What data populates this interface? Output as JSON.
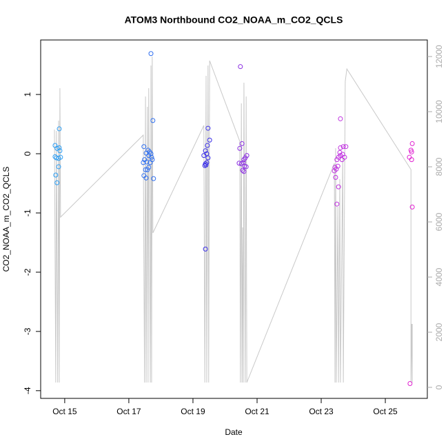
{
  "chart_data": {
    "type": "scatter",
    "title": "ATOM3 Northbound CO2_NOAA_m_CO2_QCLS",
    "x_label": "Date",
    "y_label": "CO2_NOAA_m_CO2_QCLS",
    "xlim": [
      14.25,
      26.31
    ],
    "ylim": [
      -4.13,
      1.92
    ],
    "y2lim": [
      -400,
      12600
    ],
    "xticks": [
      {
        "value": 15,
        "label": "Oct 15"
      },
      {
        "value": 17,
        "label": "Oct 17"
      },
      {
        "value": 19,
        "label": "Oct 19"
      },
      {
        "value": 21,
        "label": "Oct 21"
      },
      {
        "value": 23,
        "label": "Oct 23"
      },
      {
        "value": 25,
        "label": "Oct 25"
      }
    ],
    "yticks": [
      -4,
      -3,
      -2,
      -1,
      0,
      1
    ],
    "y2ticks": [
      0,
      2000,
      4000,
      6000,
      8000,
      10000,
      12000
    ],
    "series": [
      {
        "color": "#2a9df4",
        "x": [
          14.7,
          14.76,
          14.83,
          14.85,
          14.7,
          14.74,
          14.81,
          14.87,
          14.83,
          14.81,
          14.72,
          14.76
        ],
        "values": [
          0.14,
          0.09,
          0.1,
          0.05,
          -0.05,
          -0.07,
          -0.08,
          -0.06,
          0.42,
          -0.22,
          -0.36,
          -0.49
        ]
      },
      {
        "color": "#2f6ff0",
        "x": [
          17.69,
          17.75,
          17.77,
          17.47,
          17.54,
          17.6,
          17.65,
          17.69,
          17.62,
          17.71,
          17.49,
          17.56,
          17.45,
          17.73,
          17.58,
          17.52,
          17.62,
          17.47,
          17.54,
          17.67
        ],
        "values": [
          1.69,
          0.56,
          -0.42,
          0.12,
          0.01,
          0.06,
          0.03,
          0.0,
          -0.03,
          -0.06,
          -0.1,
          -0.14,
          -0.15,
          -0.1,
          -0.27,
          -0.27,
          -0.23,
          -0.37,
          -0.41,
          -0.15
        ]
      },
      {
        "color": "#3a2fe8",
        "x": [
          19.47,
          19.52,
          19.45,
          19.39,
          19.43,
          19.34,
          19.47,
          19.43,
          19.39,
          19.41,
          19.37,
          19.39
        ],
        "values": [
          0.43,
          0.23,
          0.14,
          0.05,
          0.0,
          -0.03,
          -0.07,
          -0.15,
          -0.17,
          -0.19,
          -0.2,
          -1.61
        ]
      },
      {
        "color": "#8a2be2",
        "x": [
          20.48,
          20.46,
          20.53,
          20.59,
          20.63,
          20.68,
          20.57,
          20.44,
          20.51,
          20.61,
          20.55,
          20.59,
          20.66
        ],
        "values": [
          1.47,
          0.09,
          0.17,
          -0.1,
          -0.07,
          -0.03,
          -0.15,
          -0.16,
          -0.17,
          -0.21,
          -0.28,
          -0.3,
          -0.22
        ]
      },
      {
        "color": "#c030e0",
        "x": [
          23.6,
          23.52,
          23.43,
          23.47,
          23.54,
          23.6,
          23.67,
          23.73,
          23.6,
          23.69,
          23.77,
          23.58,
          23.65,
          23.49,
          23.45,
          23.54,
          23.49,
          23.41
        ],
        "values": [
          0.59,
          -0.21,
          -0.23,
          -0.26,
          -0.06,
          -0.03,
          -0.01,
          -0.06,
          0.1,
          0.12,
          0.12,
          0.02,
          -0.1,
          -0.1,
          -0.4,
          -0.56,
          -0.85,
          -0.29
        ]
      },
      {
        "color": "#e020d0",
        "x": [
          25.84,
          25.8,
          25.82,
          25.75,
          25.82,
          25.84,
          25.77
        ],
        "values": [
          0.17,
          0.06,
          0.03,
          -0.06,
          -0.1,
          -0.9,
          -3.88
        ]
      },
      {
        "type": "line",
        "axis": "y2",
        "color": "#c8c8c8",
        "x": [
          14.68,
          14.72,
          14.74,
          14.78,
          14.81,
          14.83,
          14.85,
          14.87,
          17.45,
          17.47,
          17.49,
          17.52,
          17.54,
          17.58,
          17.6,
          17.62,
          17.67,
          17.69,
          17.71,
          17.73,
          17.75,
          19.34,
          19.37,
          19.41,
          19.43,
          19.47,
          19.49,
          19.52,
          20.46,
          20.48,
          20.51,
          20.53,
          20.55,
          20.57,
          20.59,
          20.63,
          20.66,
          20.68,
          23.41,
          23.43,
          23.45,
          23.47,
          23.52,
          23.54,
          23.58,
          23.6,
          23.67,
          23.69,
          23.75,
          23.8,
          25.8,
          25.8,
          25.82,
          25.84,
          25.84
        ],
        "values": [
          9350,
          175,
          9300,
          175,
          9675,
          175,
          10850,
          6175,
          9150,
          4475,
          175,
          10550,
          175,
          10175,
          175,
          10850,
          175,
          11675,
          175,
          12000,
          5600,
          9500,
          175,
          11300,
          175,
          11675,
          175,
          11850,
          8925,
          175,
          10300,
          175,
          5800,
          175,
          11050,
          175,
          10550,
          175,
          8125,
          175,
          8675,
          175,
          6550,
          175,
          7550,
          175,
          8300,
          175,
          11100,
          11550,
          7900,
          175,
          2300,
          175,
          2300
        ]
      }
    ]
  }
}
